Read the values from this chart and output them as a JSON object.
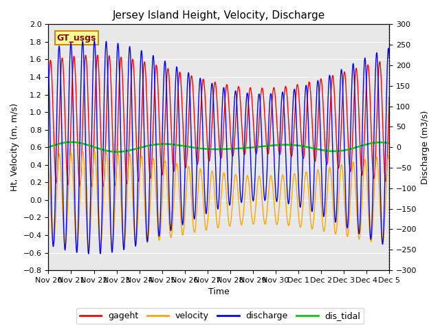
{
  "title": "Jersey Island Height, Velocity, Discharge",
  "xlabel": "Time",
  "ylabel_left": "Ht, Velocity (m, m/s)",
  "ylabel_right": "Discharge (m3/s)",
  "ylim_left": [
    -0.8,
    2.0
  ],
  "ylim_right": [
    -300,
    300
  ],
  "yticks_left": [
    -0.8,
    -0.6,
    -0.4,
    -0.2,
    0.0,
    0.2,
    0.4,
    0.6,
    0.8,
    1.0,
    1.2,
    1.4,
    1.6,
    1.8,
    2.0
  ],
  "yticks_right": [
    -300,
    -250,
    -200,
    -150,
    -100,
    -50,
    0,
    50,
    100,
    150,
    200,
    250,
    300
  ],
  "colors": {
    "gageht": "#FF0000",
    "velocity": "#FFA500",
    "discharge": "#0000FF",
    "dis_tidal": "#00CC00"
  },
  "legend_labels": [
    "gageht",
    "velocity",
    "discharge",
    "dis_tidal"
  ],
  "background_color": "#E8E8E8",
  "figure_background": "#FFFFFF",
  "xtick_labels": [
    "Nov 20",
    "Nov 21",
    "Nov 22",
    "Nov 23",
    "Nov 24",
    "Nov 25",
    "Nov 26",
    "Nov 27",
    "Nov 28",
    "Nov 29",
    "Nov 30",
    "Dec 1",
    "Dec 2",
    "Dec 3",
    "Dec 4",
    "Dec 5"
  ],
  "n_points": 5000,
  "tidal_period_hours": 12.42,
  "spring_neap_period_days": 14.77
}
